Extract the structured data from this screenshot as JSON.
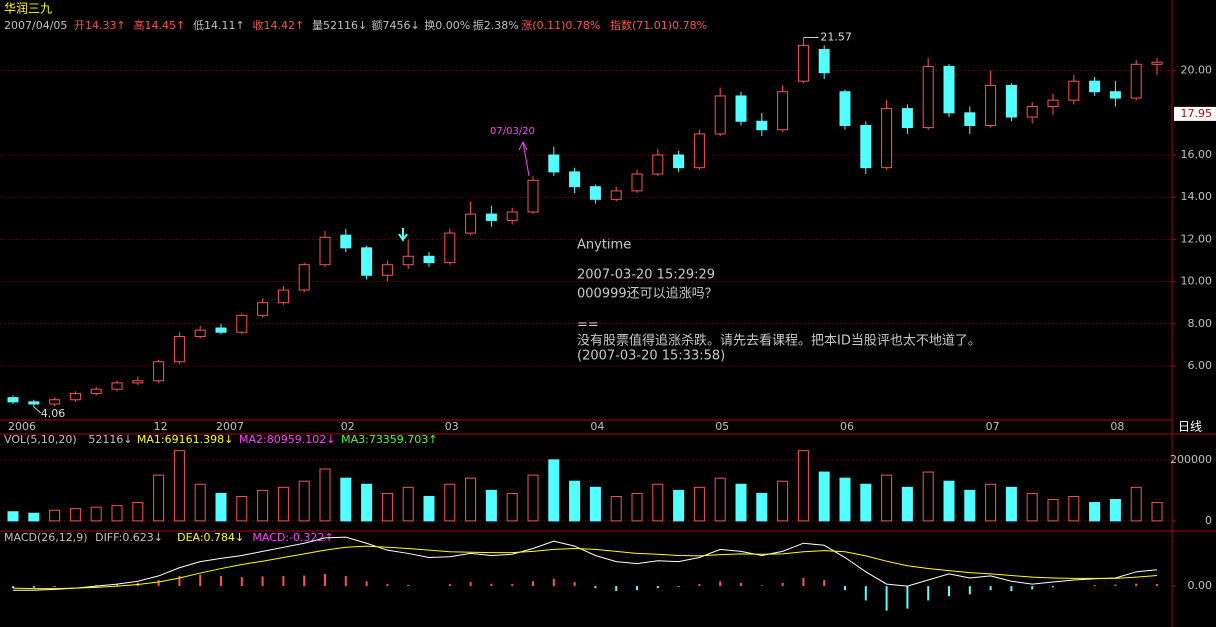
{
  "header": {
    "name": "华润三九",
    "date": "2007/04/05",
    "fields": [
      "开14.33↑",
      "高14.45↑",
      "低14.11↑",
      "收14.42↑",
      "量52116↓",
      "额7456↓",
      "换0.00%",
      "振2.38%",
      "涨(0.11)0.78%",
      "指数(71.01)0.78%"
    ]
  },
  "annotation": {
    "date_marker": "07/03/20",
    "lines": [
      "Anytime",
      "2007-03-20 15:29:29",
      "000999还可以追涨吗？",
      "==",
      "没有股票值得追涨杀跌。请先去看课程。把本ID当股评也太不地道了。",
      "(2007-03-20 15:33:58)"
    ]
  },
  "chart_data": [
    {
      "type": "candlestick",
      "period_label": "日线",
      "grid": true,
      "up_color": "#ff5050",
      "down_color": "#54ffff",
      "categories": [
        "2006",
        null,
        null,
        null,
        null,
        null,
        null,
        "12",
        null,
        null,
        "2007",
        null,
        null,
        null,
        null,
        null,
        "02",
        null,
        null,
        null,
        null,
        "03",
        null,
        null,
        null,
        null,
        null,
        null,
        "04",
        null,
        null,
        null,
        null,
        null,
        "05",
        null,
        null,
        null,
        null,
        null,
        "06",
        null,
        null,
        null,
        null,
        null,
        null,
        "07",
        null,
        null,
        null,
        null,
        null,
        "08",
        null,
        null
      ],
      "open": [
        4.5,
        4.3,
        4.2,
        4.4,
        4.7,
        4.9,
        5.2,
        5.3,
        6.2,
        7.4,
        7.8,
        7.6,
        8.4,
        9.0,
        9.6,
        10.8,
        12.2,
        11.6,
        10.3,
        10.8,
        11.2,
        10.9,
        12.3,
        13.2,
        12.9,
        13.3,
        16.0,
        15.2,
        14.5,
        13.9,
        14.3,
        15.1,
        16.0,
        15.4,
        17.0,
        18.8,
        17.6,
        17.2,
        19.5,
        21.0,
        19.0,
        17.4,
        15.4,
        18.2,
        17.3,
        20.2,
        18.0,
        17.4,
        19.3,
        17.8,
        18.3,
        18.6,
        19.5,
        19.0,
        18.7,
        20.3
      ],
      "high": [
        4.6,
        4.4,
        4.5,
        4.8,
        5.0,
        5.3,
        5.5,
        6.3,
        7.6,
        7.9,
        8.0,
        8.5,
        9.2,
        9.8,
        10.9,
        12.4,
        12.5,
        11.7,
        11.0,
        12.0,
        11.4,
        12.5,
        13.8,
        13.6,
        13.5,
        15.0,
        16.4,
        15.4,
        14.6,
        14.5,
        15.3,
        16.3,
        16.2,
        17.2,
        19.2,
        19.0,
        18.0,
        19.3,
        21.57,
        21.2,
        19.1,
        17.6,
        18.6,
        18.4,
        20.6,
        20.3,
        18.3,
        20.0,
        19.4,
        18.5,
        18.9,
        19.8,
        19.7,
        19.5,
        20.5,
        20.6
      ],
      "low": [
        4.2,
        4.06,
        4.1,
        4.3,
        4.6,
        4.8,
        5.1,
        5.2,
        6.1,
        7.3,
        7.5,
        7.5,
        8.3,
        8.9,
        9.5,
        10.7,
        11.4,
        10.1,
        10.0,
        10.6,
        10.7,
        10.8,
        12.2,
        12.6,
        12.7,
        13.2,
        15.0,
        14.2,
        13.7,
        13.8,
        14.2,
        15.0,
        15.2,
        15.3,
        16.9,
        17.4,
        16.9,
        17.1,
        19.4,
        19.6,
        17.2,
        15.1,
        15.3,
        17.0,
        17.2,
        17.8,
        17.0,
        17.3,
        17.6,
        17.5,
        17.9,
        18.4,
        18.8,
        18.3,
        18.6,
        19.8
      ],
      "close": [
        4.3,
        4.2,
        4.4,
        4.7,
        4.9,
        5.2,
        5.3,
        6.2,
        7.4,
        7.7,
        7.6,
        8.4,
        9.0,
        9.6,
        10.8,
        12.1,
        11.6,
        10.3,
        10.8,
        11.2,
        10.9,
        12.3,
        13.2,
        12.9,
        13.3,
        14.8,
        15.2,
        14.5,
        13.9,
        14.3,
        15.1,
        16.0,
        15.4,
        17.0,
        18.8,
        17.6,
        17.2,
        19.0,
        21.2,
        19.9,
        17.4,
        15.4,
        18.2,
        17.3,
        20.2,
        18.0,
        17.4,
        19.3,
        17.8,
        18.3,
        18.6,
        19.5,
        19.0,
        18.7,
        20.3,
        20.4
      ],
      "last_price": 17.95,
      "ylim": [
        3.44,
        22.4
      ],
      "yticks": [
        {
          "value": 6,
          "label": "6.00"
        },
        {
          "value": 8,
          "label": "8.00"
        },
        {
          "value": 10,
          "label": "10.00"
        },
        {
          "value": 12,
          "label": "12.00"
        },
        {
          "value": 14,
          "label": "14.00"
        },
        {
          "value": 16,
          "label": "16.00"
        },
        {
          "value": 20,
          "label": "20.00"
        }
      ]
    },
    {
      "type": "bar",
      "legend_texts": [
        "VOL(5,10,20)",
        "52116↓",
        "MA1:69161.398↓",
        "MA2:80959.102↓",
        "MA3:73359.703↑"
      ],
      "values": [
        30000,
        25000,
        35000,
        40000,
        45000,
        50000,
        60000,
        150000,
        230000,
        120000,
        90000,
        80000,
        100000,
        110000,
        130000,
        170000,
        140000,
        120000,
        90000,
        110000,
        80000,
        120000,
        140000,
        100000,
        90000,
        150000,
        200000,
        130000,
        110000,
        80000,
        90000,
        120000,
        100000,
        110000,
        140000,
        120000,
        90000,
        130000,
        230000,
        160000,
        140000,
        120000,
        150000,
        110000,
        160000,
        130000,
        100000,
        120000,
        110000,
        90000,
        70000,
        80000,
        60000,
        70000,
        110000,
        60000
      ],
      "ylim": [
        -20000,
        265000
      ],
      "yticks": [
        0,
        200000
      ],
      "grid": true
    },
    {
      "type": "macd",
      "legend_texts": [
        "MACD(26,12,9)",
        "DIFF:0.623↓",
        "DEA:0.784↓",
        "MACD:-0.322↑"
      ],
      "values": [
        -0.05,
        -0.04,
        -0.02,
        0.0,
        0.03,
        0.05,
        0.08,
        0.15,
        0.25,
        0.28,
        0.25,
        0.22,
        0.24,
        0.25,
        0.26,
        0.3,
        0.25,
        0.12,
        0.05,
        0.03,
        0.0,
        0.05,
        0.1,
        0.06,
        0.05,
        0.12,
        0.18,
        0.1,
        -0.05,
        -0.12,
        -0.1,
        -0.05,
        -0.02,
        0.05,
        0.12,
        0.08,
        0.02,
        0.08,
        0.2,
        0.15,
        -0.1,
        -0.35,
        -0.6,
        -0.55,
        -0.35,
        -0.25,
        -0.2,
        -0.1,
        -0.12,
        -0.08,
        -0.03,
        0.0,
        0.03,
        0.04,
        0.06,
        0.05
      ],
      "series": [
        {
          "color": "#ffffff",
          "values": [
            -0.1,
            -0.1,
            -0.08,
            -0.05,
            0.0,
            0.05,
            0.12,
            0.25,
            0.45,
            0.6,
            0.68,
            0.75,
            0.85,
            0.95,
            1.05,
            1.18,
            1.2,
            1.05,
            0.88,
            0.8,
            0.7,
            0.72,
            0.8,
            0.75,
            0.78,
            0.92,
            1.1,
            0.98,
            0.75,
            0.6,
            0.55,
            0.62,
            0.6,
            0.7,
            0.9,
            0.85,
            0.75,
            0.85,
            1.05,
            1.0,
            0.7,
            0.35,
            0.05,
            0.0,
            0.15,
            0.3,
            0.2,
            0.25,
            0.12,
            0.05,
            0.1,
            0.15,
            0.18,
            0.2,
            0.35,
            0.4
          ]
        },
        {
          "color": "#ffff00",
          "values": [
            -0.05,
            -0.06,
            -0.06,
            -0.05,
            -0.03,
            0.0,
            0.04,
            0.1,
            0.2,
            0.32,
            0.43,
            0.53,
            0.61,
            0.7,
            0.79,
            0.88,
            0.95,
            0.98,
            0.95,
            0.92,
            0.88,
            0.84,
            0.83,
            0.82,
            0.82,
            0.85,
            0.9,
            0.92,
            0.9,
            0.85,
            0.8,
            0.78,
            0.75,
            0.74,
            0.77,
            0.79,
            0.78,
            0.79,
            0.84,
            0.87,
            0.84,
            0.74,
            0.61,
            0.5,
            0.43,
            0.38,
            0.33,
            0.3,
            0.26,
            0.22,
            0.2,
            0.19,
            0.19,
            0.19,
            0.22,
            0.26
          ]
        }
      ],
      "ylim": [
        -1.0,
        1.3
      ],
      "yticks": [
        {
          "value": 0,
          "label": "0.00"
        }
      ]
    }
  ]
}
